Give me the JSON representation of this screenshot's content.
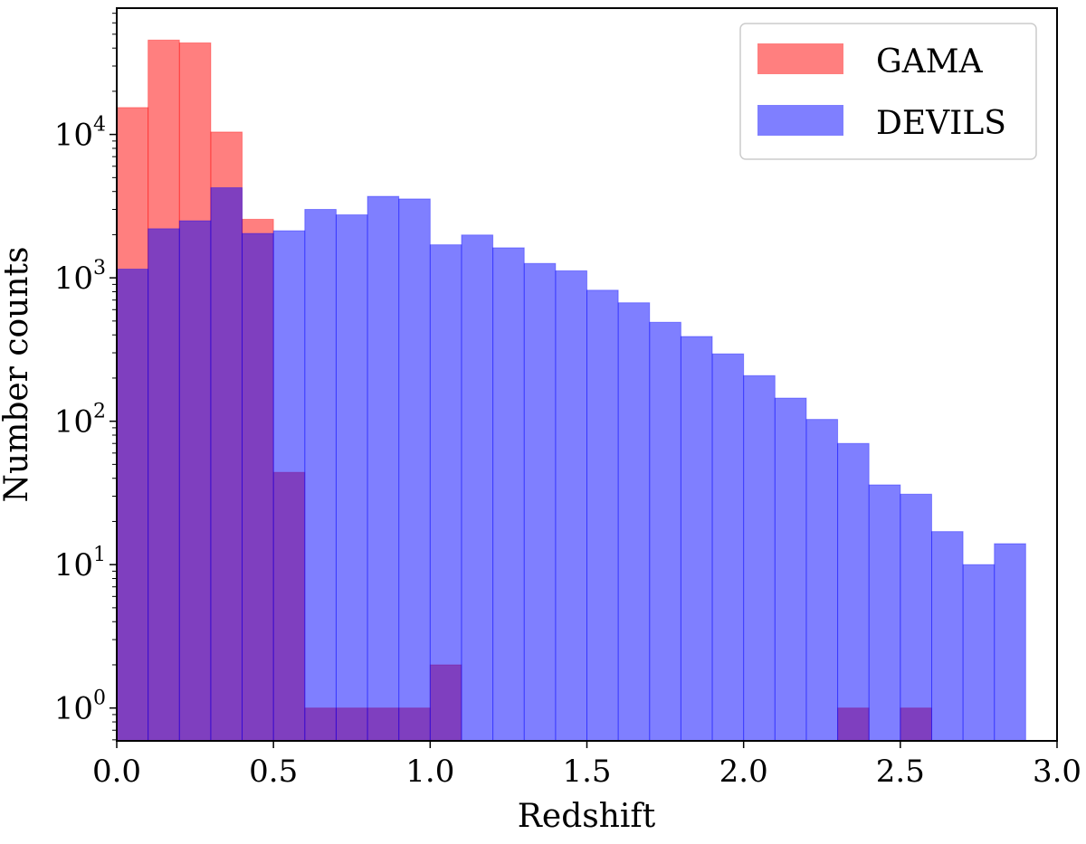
{
  "chart_data": {
    "type": "bar",
    "subtype": "histogram",
    "title": "",
    "xlabel": "Redshift",
    "ylabel": "Number counts",
    "xlim": [
      0.0,
      3.0
    ],
    "ylim": [
      0.59,
      76000
    ],
    "yscale": "log",
    "grid": false,
    "legend_placement": "top-right",
    "bin_edges": [
      0.0,
      0.1,
      0.2,
      0.3,
      0.4,
      0.5,
      0.6,
      0.7,
      0.8,
      0.9,
      1.0,
      1.1,
      1.2,
      1.3,
      1.4,
      1.5,
      1.6,
      1.7,
      1.8,
      1.9,
      2.0,
      2.1,
      2.2,
      2.3,
      2.4,
      2.5,
      2.6,
      2.7,
      2.8,
      2.9
    ],
    "x_ticks": [
      "0.0",
      "0.5",
      "1.0",
      "1.5",
      "2.0",
      "2.5",
      "3.0"
    ],
    "y_ticks": [
      {
        "base": "10",
        "exp": "0",
        "value": 1
      },
      {
        "base": "10",
        "exp": "1",
        "value": 10
      },
      {
        "base": "10",
        "exp": "2",
        "value": 100
      },
      {
        "base": "10",
        "exp": "3",
        "value": 1000
      },
      {
        "base": "10",
        "exp": "4",
        "value": 10000
      }
    ],
    "series": [
      {
        "name": "GAMA",
        "color": "#ff0000",
        "alpha": 0.5,
        "values": [
          15400,
          45500,
          43500,
          10400,
          2560,
          44,
          1,
          1,
          1,
          1,
          2,
          0,
          0,
          0,
          0,
          0,
          0,
          0,
          0,
          0,
          0,
          0,
          0,
          1,
          0,
          1,
          0,
          0,
          0
        ]
      },
      {
        "name": "DEVILS",
        "color": "#0000ff",
        "alpha": 0.5,
        "values": [
          1150,
          2200,
          2500,
          4250,
          2040,
          2130,
          3000,
          2750,
          3700,
          3550,
          1700,
          1990,
          1620,
          1260,
          1120,
          820,
          670,
          490,
          390,
          295,
          208,
          145,
          103,
          70,
          36,
          31,
          17,
          10,
          14
        ]
      }
    ]
  }
}
